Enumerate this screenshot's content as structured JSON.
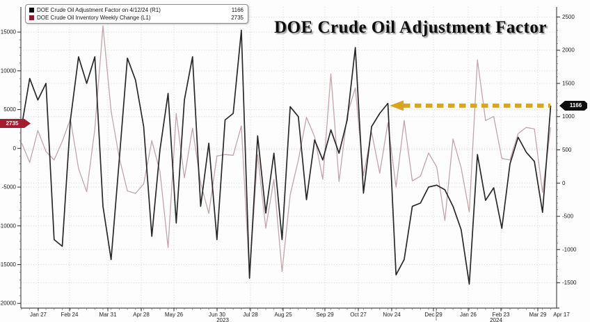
{
  "title": "DOE Crude Oil Adjustment Factor",
  "legend": {
    "items": [
      {
        "label": "DOE Crude Oil Adjustment Factor on 4/12/24 (R1)",
        "value": "1166",
        "swatch": "#0a0a0a"
      },
      {
        "label": "DOE Crude Oil Inventory Weekly Change (L1)",
        "value": "2735",
        "swatch": "#8e1b2c"
      }
    ]
  },
  "badges": {
    "left": {
      "text": "2735",
      "color": "#a51c30"
    },
    "right": {
      "text": "1166",
      "color": "#0d0d0d"
    }
  },
  "chart_data": {
    "type": "line",
    "title": "DOE Crude Oil Adjustment Factor",
    "x_interval": "weekly",
    "x_start": "2023-01-13",
    "x_end": "2024-04-12",
    "x_tick_labels": [
      "Jan 27",
      "Feb 24",
      "Mar 31",
      "Apr 28",
      "May 26",
      "Jun 30",
      "Jul 28",
      "Aug 25",
      "Sep 29",
      "Oct 27",
      "Nov 24",
      "Dec 29",
      "Jan 26",
      "Feb 23",
      "Mar 29",
      "Apr 17"
    ],
    "year_labels": [
      "2023",
      "2024"
    ],
    "left_axis": {
      "ticks": [
        15000,
        10000,
        5000,
        0,
        -5000,
        -10000,
        -15000,
        -20000
      ],
      "range": [
        -20500,
        18000
      ],
      "current_value": 2735
    },
    "right_axis": {
      "ticks": [
        2500,
        2000,
        1500,
        1000,
        500,
        0,
        -500,
        -1000,
        -1500
      ],
      "range": [
        -1600,
        2650
      ],
      "current_value": 1166
    },
    "grid": "dotted-both-scales",
    "legend_position": "top-left",
    "series": [
      {
        "name": "DOE Crude Oil Adjustment Factor on 4/12/24",
        "axis": "R1",
        "color": "#282828",
        "width": 1.7,
        "last_value": 1166,
        "values": [
          850,
          1575,
          1250,
          1500,
          -850,
          -950,
          950,
          1900,
          1500,
          1900,
          -350,
          -1150,
          350,
          1880,
          1550,
          850,
          -800,
          500,
          1350,
          -600,
          1250,
          1900,
          -350,
          600,
          -850,
          950,
          1050,
          2300,
          -1430,
          710,
          -450,
          450,
          -850,
          1150,
          1000,
          -250,
          650,
          350,
          800,
          450,
          950,
          2040,
          -150,
          850,
          1050,
          1200,
          -1380,
          -1150,
          -350,
          -300,
          -60,
          -30,
          -100,
          -350,
          -700,
          -1520,
          430,
          -260,
          -70,
          -680,
          290,
          690,
          465,
          325,
          -440,
          1166
        ]
      },
      {
        "name": "DOE Crude Oil Inventory Weekly Change",
        "axis": "L1",
        "color": "#c1a5ab",
        "width": 1.3,
        "last_value": 2735,
        "values": [
          700,
          -1800,
          2300,
          -400,
          -1500,
          900,
          3800,
          -2600,
          -5600,
          2500,
          15800,
          4800,
          -1200,
          -5500,
          -5800,
          -4600,
          1000,
          -3000,
          -12800,
          4500,
          -3800,
          2600,
          -4500,
          -8400,
          -1000,
          -800,
          -900,
          2900,
          -16400,
          -800,
          -10300,
          -4000,
          -15900,
          -6000,
          -1500,
          4000,
          1500,
          -4000,
          9600,
          -4300,
          4300,
          7800,
          -3500,
          2100,
          -3200,
          3300,
          -5000,
          3600,
          -4200,
          -3600,
          -600,
          -2400,
          -9300,
          1200,
          -2500,
          -8200,
          11400,
          3600,
          4100,
          -1300,
          -1500,
          1900,
          2700,
          2500,
          -5700,
          2735
        ]
      }
    ],
    "annotation_arrow": {
      "direction": "left",
      "color": "#d9a51f",
      "style": "dashed",
      "points_at_right_axis_value": 1166
    }
  }
}
